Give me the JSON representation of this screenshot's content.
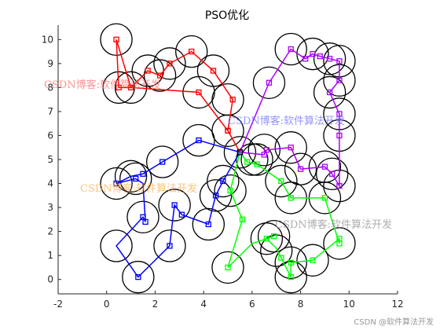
{
  "chart_data": {
    "type": "line",
    "title": "PSO优化",
    "xlim": [
      -2,
      12
    ],
    "ylim": [
      -0.6,
      10.6
    ],
    "xticks": [
      -2,
      0,
      2,
      4,
      6,
      8,
      10,
      12
    ],
    "yticks": [
      0,
      1,
      2,
      3,
      4,
      5,
      6,
      7,
      8,
      9,
      10
    ],
    "grid": false,
    "circle_radius": 0.65,
    "circle_color": "#000000",
    "series": [
      {
        "color": "#ff0000",
        "points": [
          [
            5.5,
            5.3
          ],
          [
            5.0,
            6.2
          ],
          [
            5.2,
            7.5
          ],
          [
            4.4,
            8.7
          ],
          [
            3.5,
            9.5
          ],
          [
            2.6,
            9.0
          ],
          [
            2.2,
            8.5
          ],
          [
            1.7,
            8.7
          ],
          [
            1.0,
            8.0
          ],
          [
            0.5,
            8.0
          ],
          [
            0.4,
            10.0
          ],
          [
            3.8,
            7.8
          ],
          [
            5.0,
            6.2
          ]
        ],
        "path": [
          [
            5.5,
            5.3
          ],
          [
            5.0,
            6.2
          ],
          [
            5.2,
            7.5
          ],
          [
            4.4,
            8.7
          ],
          [
            3.5,
            9.5
          ],
          [
            2.6,
            9.0
          ],
          [
            2.2,
            8.5
          ],
          [
            1.7,
            8.7
          ],
          [
            1.0,
            8.0
          ],
          [
            0.5,
            8.0
          ],
          [
            0.4,
            10.0
          ],
          [
            1.0,
            8.0
          ],
          [
            3.8,
            7.8
          ],
          [
            5.0,
            6.2
          ],
          [
            5.5,
            5.3
          ]
        ]
      },
      {
        "color": "#0000ff",
        "points": [
          [
            5.5,
            5.3
          ],
          [
            3.8,
            5.8
          ],
          [
            2.3,
            4.9
          ],
          [
            1.5,
            4.4
          ],
          [
            1.2,
            4.2
          ],
          [
            0.4,
            4.0
          ],
          [
            1.5,
            2.6
          ],
          [
            1.6,
            2.4
          ],
          [
            1.3,
            0.1
          ],
          [
            2.6,
            1.4
          ],
          [
            2.8,
            3.1
          ],
          [
            3.1,
            2.7
          ],
          [
            4.2,
            2.3
          ],
          [
            4.5,
            3.5
          ],
          [
            4.8,
            4.1
          ]
        ],
        "path": [
          [
            5.5,
            5.3
          ],
          [
            3.8,
            5.8
          ],
          [
            2.3,
            4.9
          ],
          [
            1.5,
            4.4
          ],
          [
            1.0,
            4.3
          ],
          [
            0.4,
            4.0
          ],
          [
            1.2,
            4.2
          ],
          [
            1.5,
            4.0
          ],
          [
            1.6,
            2.4
          ],
          [
            1.5,
            2.6
          ],
          [
            0.4,
            1.4
          ],
          [
            1.3,
            0.1
          ],
          [
            2.6,
            1.4
          ],
          [
            2.8,
            3.1
          ],
          [
            3.1,
            2.7
          ],
          [
            4.2,
            2.3
          ],
          [
            4.5,
            3.5
          ],
          [
            4.8,
            4.1
          ],
          [
            5.5,
            5.3
          ]
        ]
      },
      {
        "color": "#00ff00",
        "points": [
          [
            5.5,
            5.3
          ],
          [
            5.8,
            4.9
          ],
          [
            6.2,
            4.8
          ],
          [
            7.2,
            4.1
          ],
          [
            7.6,
            3.4
          ],
          [
            9.0,
            3.4
          ],
          [
            9.6,
            1.5
          ],
          [
            9.6,
            1.7
          ],
          [
            8.5,
            0.8
          ],
          [
            7.6,
            0.7
          ],
          [
            7.6,
            0.1
          ],
          [
            7.2,
            0.9
          ],
          [
            6.6,
            1.7
          ],
          [
            6.9,
            1.8
          ],
          [
            5.6,
            2.5
          ],
          [
            5.1,
            3.7
          ],
          [
            5.0,
            0.5
          ]
        ],
        "path": [
          [
            5.5,
            5.3
          ],
          [
            5.8,
            4.9
          ],
          [
            6.2,
            4.8
          ],
          [
            7.2,
            4.1
          ],
          [
            7.6,
            3.4
          ],
          [
            9.0,
            3.4
          ],
          [
            9.6,
            1.5
          ],
          [
            9.6,
            1.7
          ],
          [
            8.5,
            0.8
          ],
          [
            7.6,
            0.7
          ],
          [
            7.6,
            0.1
          ],
          [
            7.2,
            0.9
          ],
          [
            7.0,
            1.3
          ],
          [
            6.6,
            1.7
          ],
          [
            6.9,
            1.8
          ],
          [
            6.0,
            1.5
          ],
          [
            5.0,
            0.5
          ],
          [
            5.6,
            2.5
          ],
          [
            5.1,
            3.7
          ],
          [
            5.5,
            5.3
          ]
        ]
      },
      {
        "color": "#aa00ff",
        "points": [
          [
            5.5,
            5.3
          ],
          [
            6.5,
            5.2
          ],
          [
            6.6,
            5.4
          ],
          [
            7.6,
            5.5
          ],
          [
            8.0,
            4.6
          ],
          [
            9.0,
            4.7
          ],
          [
            9.3,
            4.4
          ],
          [
            9.6,
            3.9
          ],
          [
            9.6,
            6.0
          ],
          [
            9.6,
            6.9
          ],
          [
            9.2,
            7.8
          ],
          [
            9.6,
            8.3
          ],
          [
            9.6,
            9.1
          ],
          [
            9.2,
            9.2
          ],
          [
            8.8,
            9.3
          ],
          [
            8.5,
            9.4
          ],
          [
            8.2,
            9.2
          ],
          [
            7.6,
            9.6
          ],
          [
            6.7,
            8.2
          ]
        ],
        "path": [
          [
            5.5,
            5.3
          ],
          [
            6.5,
            5.2
          ],
          [
            6.6,
            5.4
          ],
          [
            7.6,
            5.5
          ],
          [
            8.0,
            4.6
          ],
          [
            9.0,
            4.7
          ],
          [
            9.3,
            4.4
          ],
          [
            9.6,
            3.9
          ],
          [
            9.6,
            6.0
          ],
          [
            9.6,
            6.9
          ],
          [
            9.2,
            7.8
          ],
          [
            9.6,
            8.3
          ],
          [
            9.6,
            9.1
          ],
          [
            9.2,
            9.2
          ],
          [
            8.8,
            9.3
          ],
          [
            8.5,
            9.4
          ],
          [
            8.2,
            9.2
          ],
          [
            7.6,
            9.6
          ],
          [
            6.7,
            8.2
          ],
          [
            5.5,
            5.3
          ]
        ]
      }
    ],
    "center": [
      5.5,
      5.3
    ],
    "circles": [
      [
        0.4,
        10.0
      ],
      [
        0.5,
        8.0
      ],
      [
        1.0,
        8.0
      ],
      [
        1.7,
        8.7
      ],
      [
        2.2,
        8.5
      ],
      [
        2.6,
        9.0
      ],
      [
        3.5,
        9.5
      ],
      [
        4.4,
        8.7
      ],
      [
        3.8,
        7.8
      ],
      [
        5.0,
        7.5
      ],
      [
        5.0,
        6.2
      ],
      [
        5.5,
        5.3
      ],
      [
        6.2,
        5.0
      ],
      [
        6.5,
        5.4
      ],
      [
        7.6,
        5.5
      ],
      [
        8.0,
        4.6
      ],
      [
        9.0,
        4.7
      ],
      [
        9.3,
        4.4
      ],
      [
        9.6,
        3.9
      ],
      [
        9.6,
        6.0
      ],
      [
        9.6,
        6.9
      ],
      [
        9.2,
        7.8
      ],
      [
        9.6,
        8.3
      ],
      [
        9.6,
        9.1
      ],
      [
        9.2,
        9.2
      ],
      [
        8.5,
        9.4
      ],
      [
        7.6,
        9.6
      ],
      [
        6.7,
        8.2
      ],
      [
        0.4,
        4.0
      ],
      [
        1.0,
        4.3
      ],
      [
        1.2,
        4.2
      ],
      [
        2.3,
        4.9
      ],
      [
        3.8,
        5.8
      ],
      [
        1.5,
        2.6
      ],
      [
        0.4,
        1.4
      ],
      [
        1.3,
        0.1
      ],
      [
        2.6,
        1.4
      ],
      [
        2.8,
        3.1
      ],
      [
        4.2,
        2.3
      ],
      [
        4.5,
        3.5
      ],
      [
        4.8,
        4.1
      ],
      [
        5.1,
        3.7
      ],
      [
        5.0,
        0.5
      ],
      [
        6.6,
        1.7
      ],
      [
        6.9,
        1.8
      ],
      [
        7.0,
        1.2
      ],
      [
        7.6,
        0.7
      ],
      [
        7.6,
        0.1
      ],
      [
        8.5,
        0.8
      ],
      [
        9.6,
        1.5
      ],
      [
        9.0,
        3.4
      ],
      [
        7.6,
        3.4
      ],
      [
        7.2,
        4.1
      ],
      [
        6.0,
        5.0
      ]
    ]
  },
  "watermarks": [
    {
      "text": "CSDN博客:软件算法开发",
      "color": "#ff6666"
    },
    {
      "text": "CSDN博客:软件算法开发",
      "color": "#6666ff"
    },
    {
      "text": "CSDN博客:软件算法开发",
      "color": "#ffaa44"
    },
    {
      "text": "CSDN博客:软件算法开发",
      "color": "#999999"
    }
  ],
  "corner_text": "CSDN @软件算法开发"
}
